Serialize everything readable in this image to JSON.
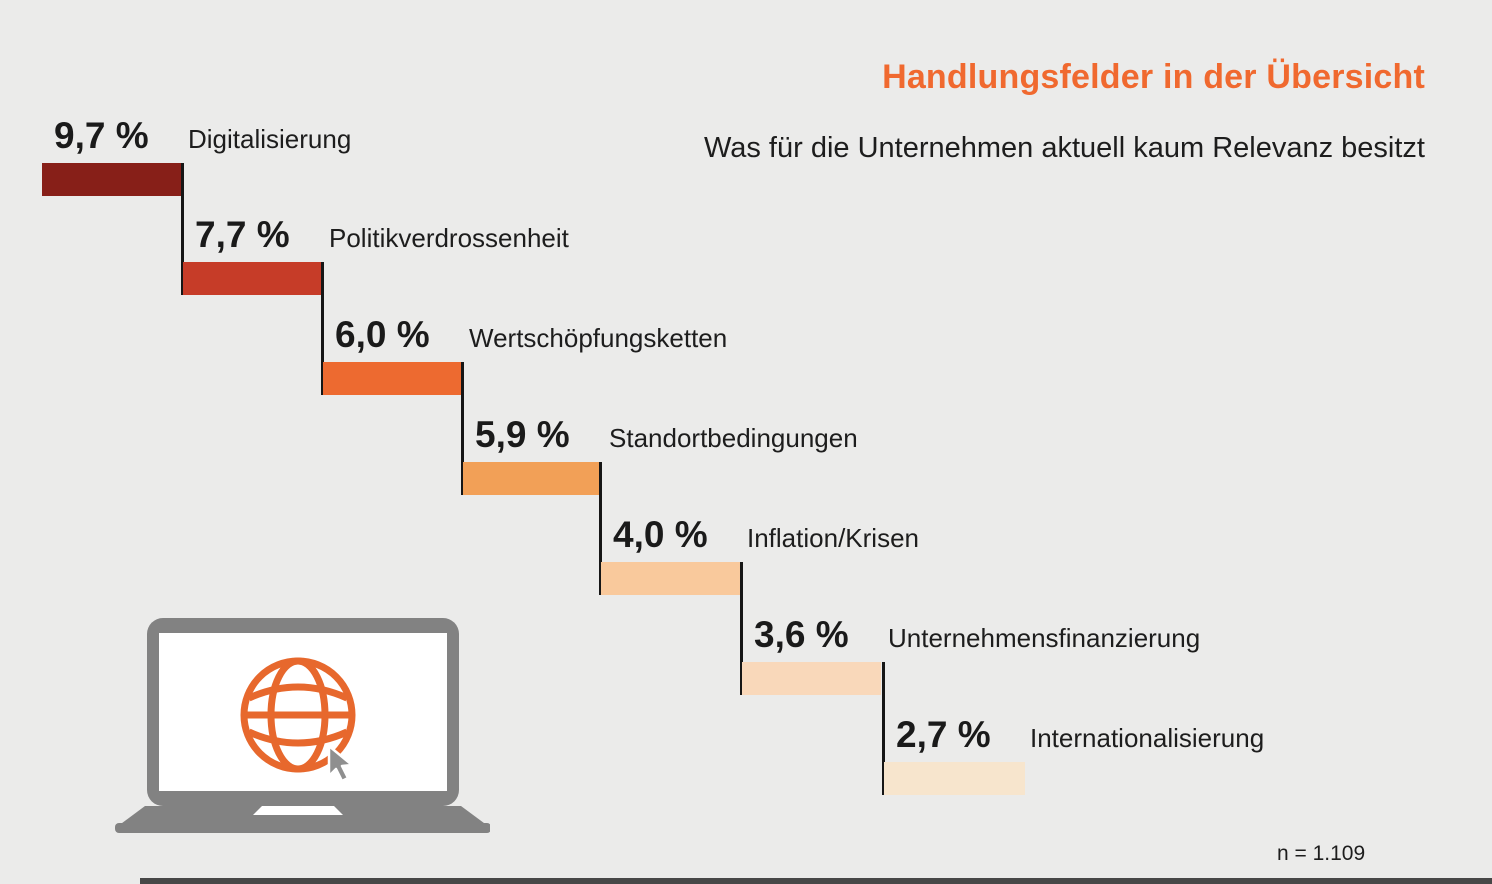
{
  "header": {
    "title": "Handlungsfelder in der Übersicht",
    "subtitle": "Was für die Unternehmen aktuell kaum Relevanz besitzt",
    "title_color": "#F0692F"
  },
  "chart_data": {
    "type": "bar",
    "variant": "descending-waterfall-steps",
    "title": "Handlungsfelder in der Übersicht",
    "subtitle": "Was für die Unternehmen aktuell kaum Relevanz besitzt",
    "categories": [
      "Digitalisierung",
      "Politikverdrossenheit",
      "Wertschöpfungsketten",
      "Standortbedingungen",
      "Inflation/Krisen",
      "Unternehmensfinanzierung",
      "Internationalisierung"
    ],
    "values": [
      9.7,
      7.7,
      6.0,
      5.9,
      4.0,
      3.6,
      2.7
    ],
    "value_labels": [
      "9,7 %",
      "7,7 %",
      "6,0 %",
      "5,9 %",
      "4,0 %",
      "3,6 %",
      "2,7 %"
    ],
    "unit": "%",
    "bar_colors": [
      "#871F18",
      "#C63C28",
      "#ED6A30",
      "#F2A057",
      "#F9C99C",
      "#F9D8BA",
      "#F7E5CD"
    ],
    "legend": "none",
    "grid": false,
    "sample_size": "n = 1.109"
  },
  "footer": {
    "sample_size": "n = 1.109"
  },
  "icons": {
    "laptop": "laptop-with-globe-and-cursor-icon",
    "laptop_color": "#828282",
    "globe_color": "#E7682D",
    "cursor_color": "#8F8F8F"
  }
}
